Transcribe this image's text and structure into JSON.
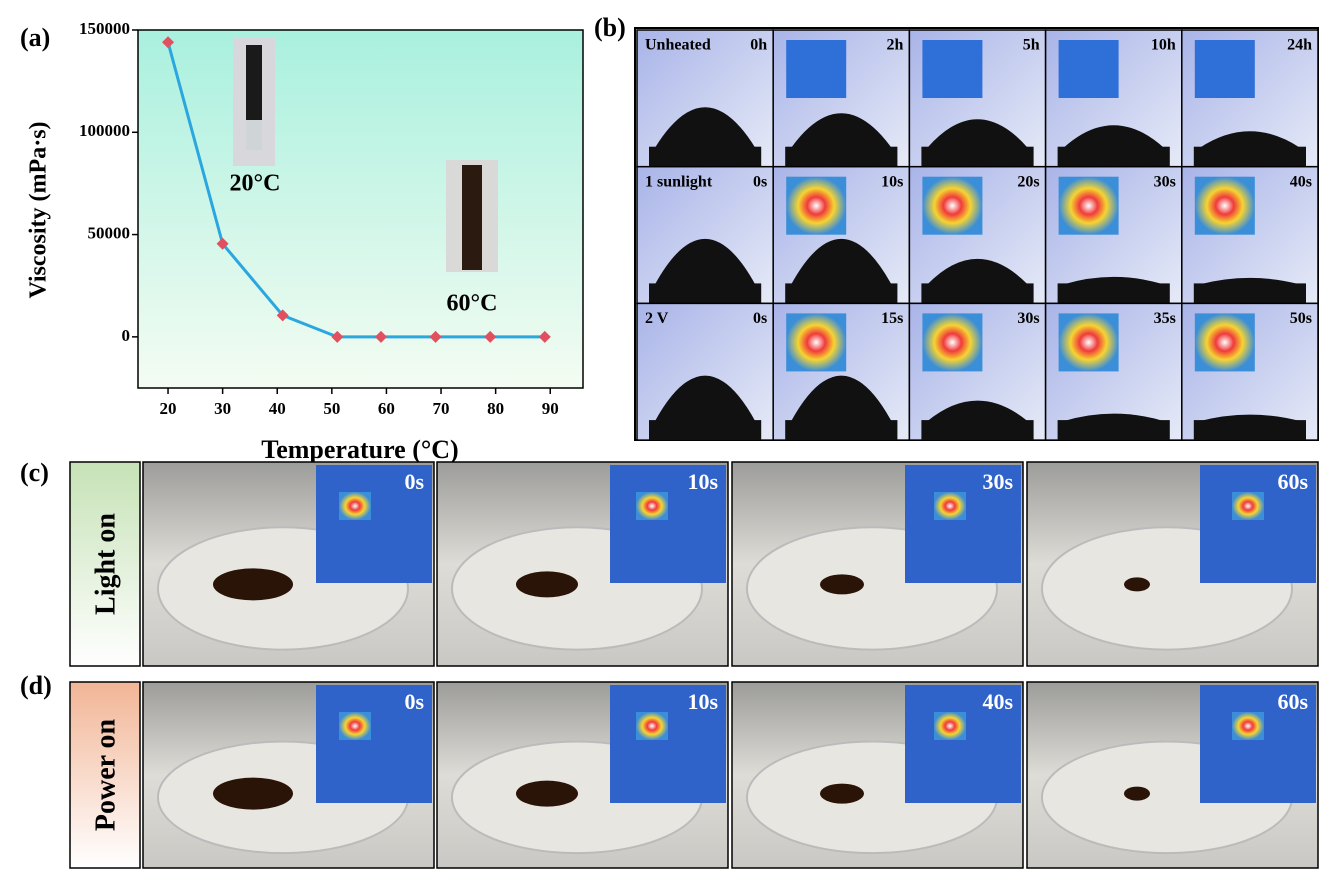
{
  "chart_data": {
    "type": "line",
    "panel_label": "(a)",
    "x_label": "Temperature (°C)",
    "y_label": "Viscosity (mPa·s)",
    "x": [
      20,
      30,
      41,
      51,
      59,
      69,
      79,
      89
    ],
    "values": [
      144000,
      45500,
      10500,
      0,
      0,
      0,
      0,
      0
    ],
    "line_color": "#2aa7df",
    "marker_color": "#e0505e",
    "xlim": [
      14.5,
      96
    ],
    "ylim": [
      -25000,
      150000
    ],
    "xticks": [
      20,
      30,
      40,
      50,
      60,
      70,
      80,
      90
    ],
    "yticks": [
      0,
      50000,
      100000,
      150000
    ],
    "annotations": [
      "20°C",
      "60°C"
    ]
  },
  "panel_b": {
    "label": "(b)",
    "rows": [
      {
        "name": "Unheated",
        "times": [
          "0h",
          "2h",
          "5h",
          "10h",
          "24h"
        ]
      },
      {
        "name": "1 sunlight",
        "times": [
          "0s",
          "10s",
          "20s",
          "30s",
          "40s"
        ]
      },
      {
        "name": "2 V",
        "times": [
          "0s",
          "15s",
          "30s",
          "35s",
          "50s"
        ]
      }
    ]
  },
  "panel_c": {
    "label": "(c)",
    "side_label": "Light on",
    "times": [
      "0s",
      "10s",
      "30s",
      "60s"
    ]
  },
  "panel_d": {
    "label": "(d)",
    "side_label": "Power on",
    "times": [
      "0s",
      "10s",
      "40s",
      "60s"
    ]
  }
}
